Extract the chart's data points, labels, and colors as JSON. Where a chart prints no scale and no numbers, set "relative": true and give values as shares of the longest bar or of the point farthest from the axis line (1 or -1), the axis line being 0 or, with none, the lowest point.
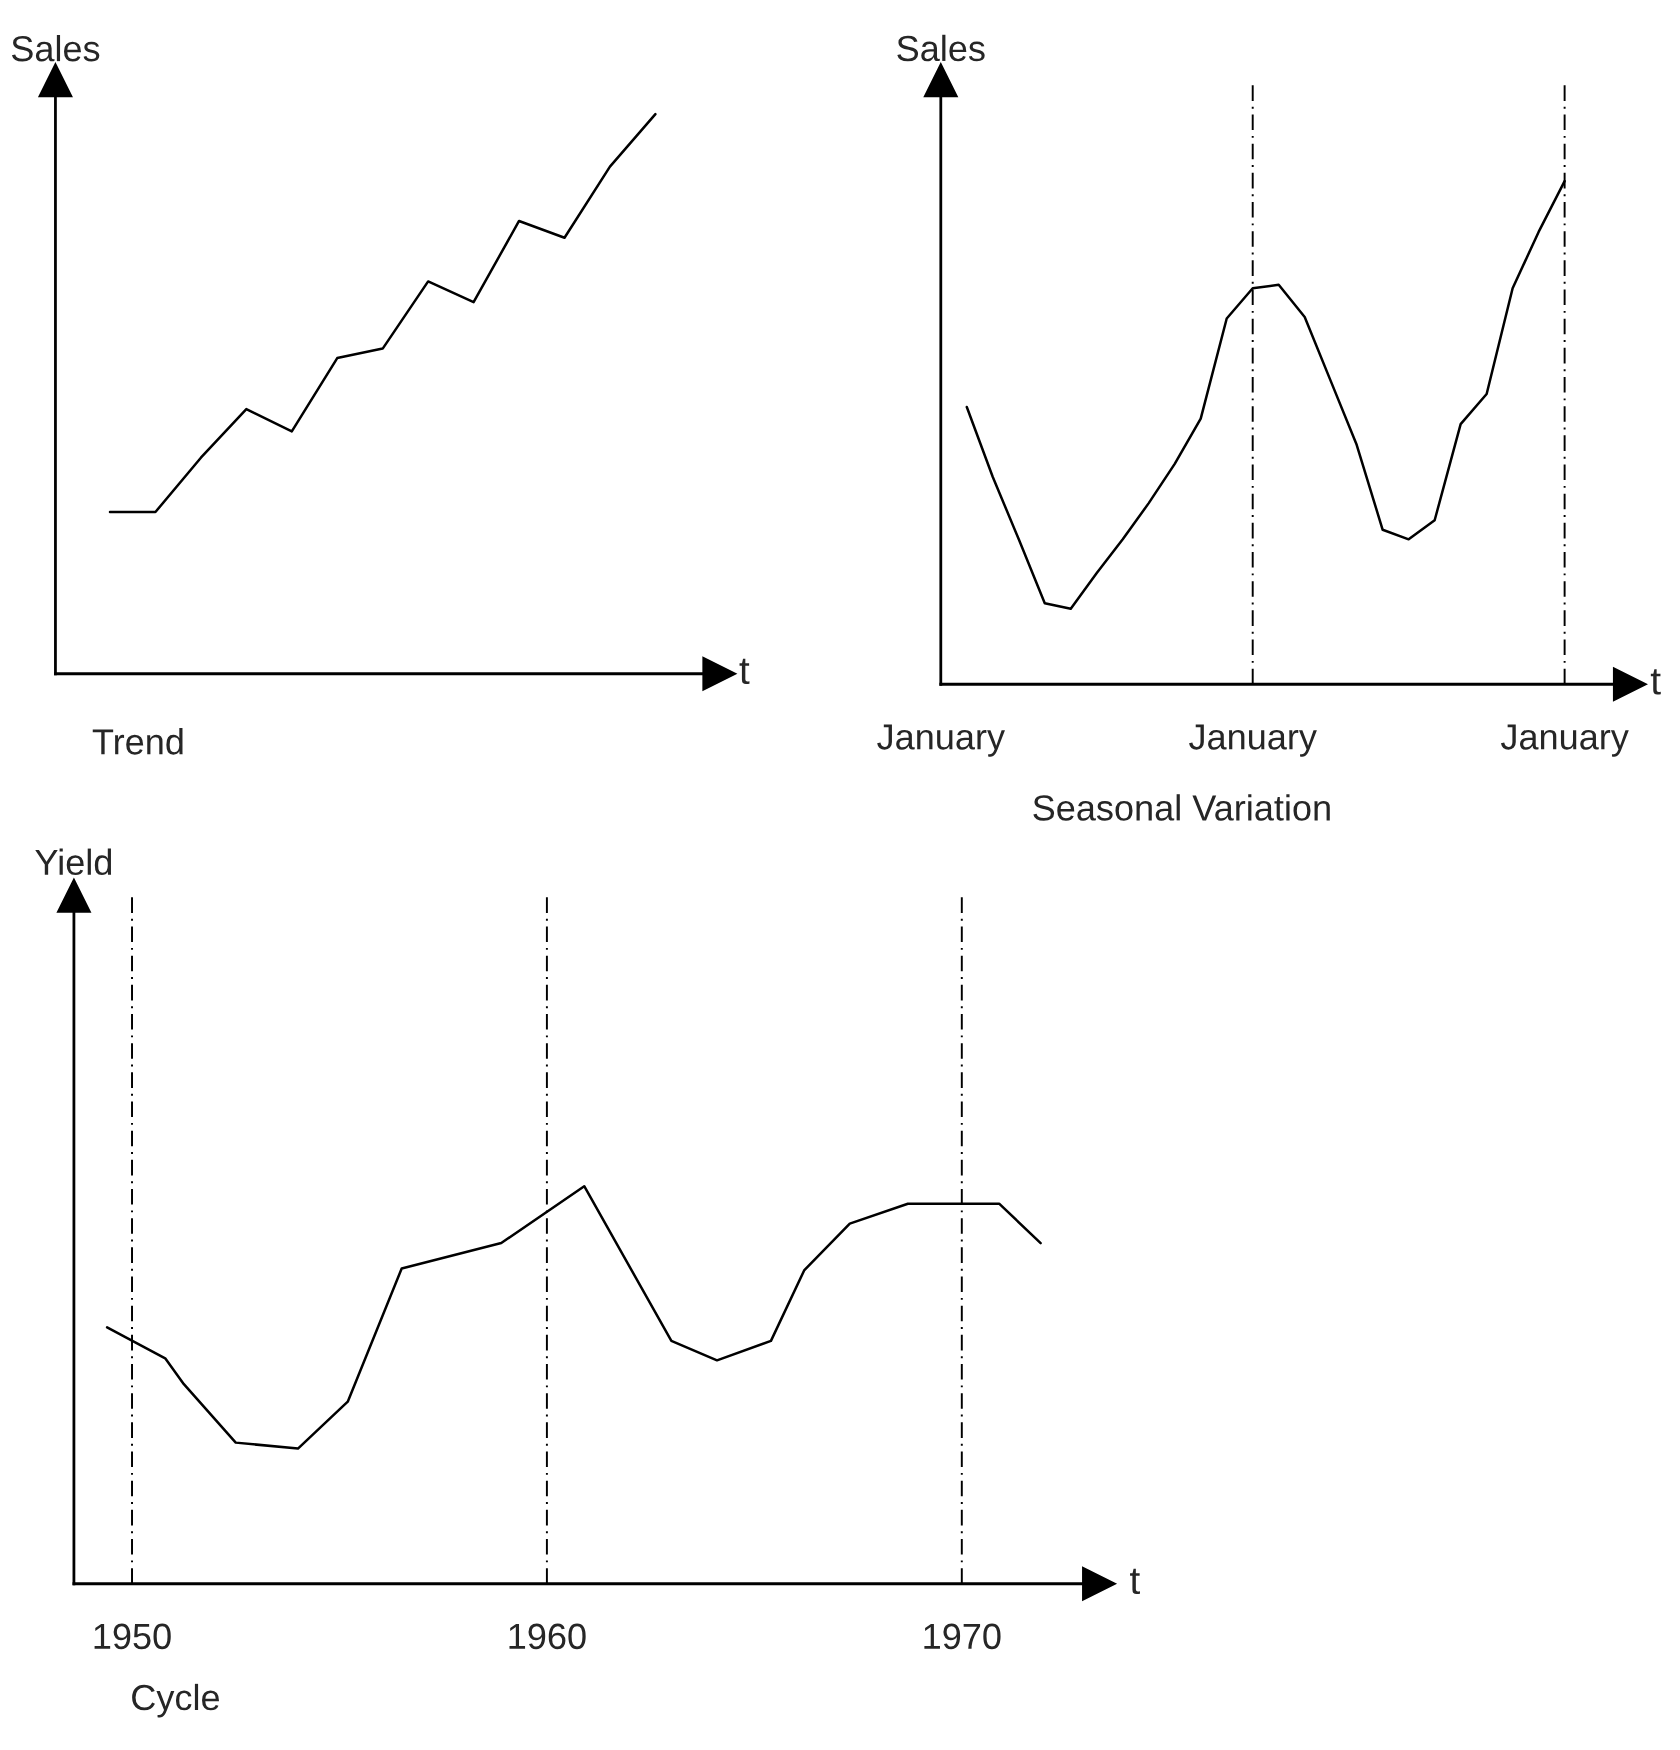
{
  "chart_data": [
    {
      "type": "line",
      "title": "Trend",
      "ylabel": "Sales",
      "xlabel": "t",
      "relative": true,
      "grid": false,
      "legend": false,
      "marker": "none",
      "line_style": "solid",
      "tick_labels": false,
      "categories": [
        null,
        null,
        null,
        null,
        null,
        null,
        null,
        null,
        null,
        null,
        null,
        null,
        null
      ],
      "series": [
        {
          "color": "#000000",
          "values": [
            0.289,
            0.289,
            0.386,
            0.473,
            0.433,
            0.564,
            0.581,
            0.701,
            0.664,
            0.809,
            0.779,
            0.906,
            1.0
          ]
        }
      ]
    },
    {
      "type": "line",
      "title": "Seasonal Variation",
      "ylabel": "Sales",
      "xlabel": "t",
      "relative": true,
      "legend": false,
      "marker": "none",
      "line_style": "solid",
      "tick_labels": "x",
      "categories": [
        "January",
        null,
        null,
        null,
        null,
        null,
        null,
        null,
        null,
        null,
        null,
        null,
        "January",
        null,
        null,
        null,
        null,
        null,
        null,
        null,
        null,
        null,
        null,
        null,
        "January"
      ],
      "grid": "x",
      "series": [
        {
          "color": "#000000",
          "values": [
            null,
            0.551,
            0.412,
            0.288,
            0.161,
            0.15,
            0.221,
            0.288,
            0.36,
            0.438,
            0.528,
            0.727,
            0.787,
            0.794,
            0.73,
            0.603,
            0.476,
            0.307,
            0.288,
            0.326,
            0.517,
            0.577,
            0.787,
            0.899,
            1.0
          ]
        }
      ]
    },
    {
      "type": "line",
      "title": "Cycle",
      "ylabel": "Yield",
      "xlabel": "t",
      "relative": true,
      "legend": false,
      "marker": "none",
      "line_style": "solid",
      "tick_labels": "x",
      "xlim": [
        1948.6,
        1973.3
      ],
      "xticks": [
        1950,
        1960,
        1970
      ],
      "grid": "x",
      "series": [
        {
          "color": "#000000",
          "x": [
            1949.4,
            1950.8,
            1951.25,
            1952.5,
            1954.0,
            1955.2,
            1956.5,
            1958.9,
            1960.9,
            1963.0,
            1964.1,
            1965.4,
            1966.2,
            1967.3,
            1968.7,
            1970.9,
            1971.9
          ],
          "values": [
            0.645,
            0.567,
            0.502,
            0.355,
            0.34,
            0.458,
            0.793,
            0.857,
            1.0,
            0.611,
            0.562,
            0.611,
            0.788,
            0.906,
            0.956,
            0.956,
            0.857
          ]
        }
      ]
    }
  ]
}
